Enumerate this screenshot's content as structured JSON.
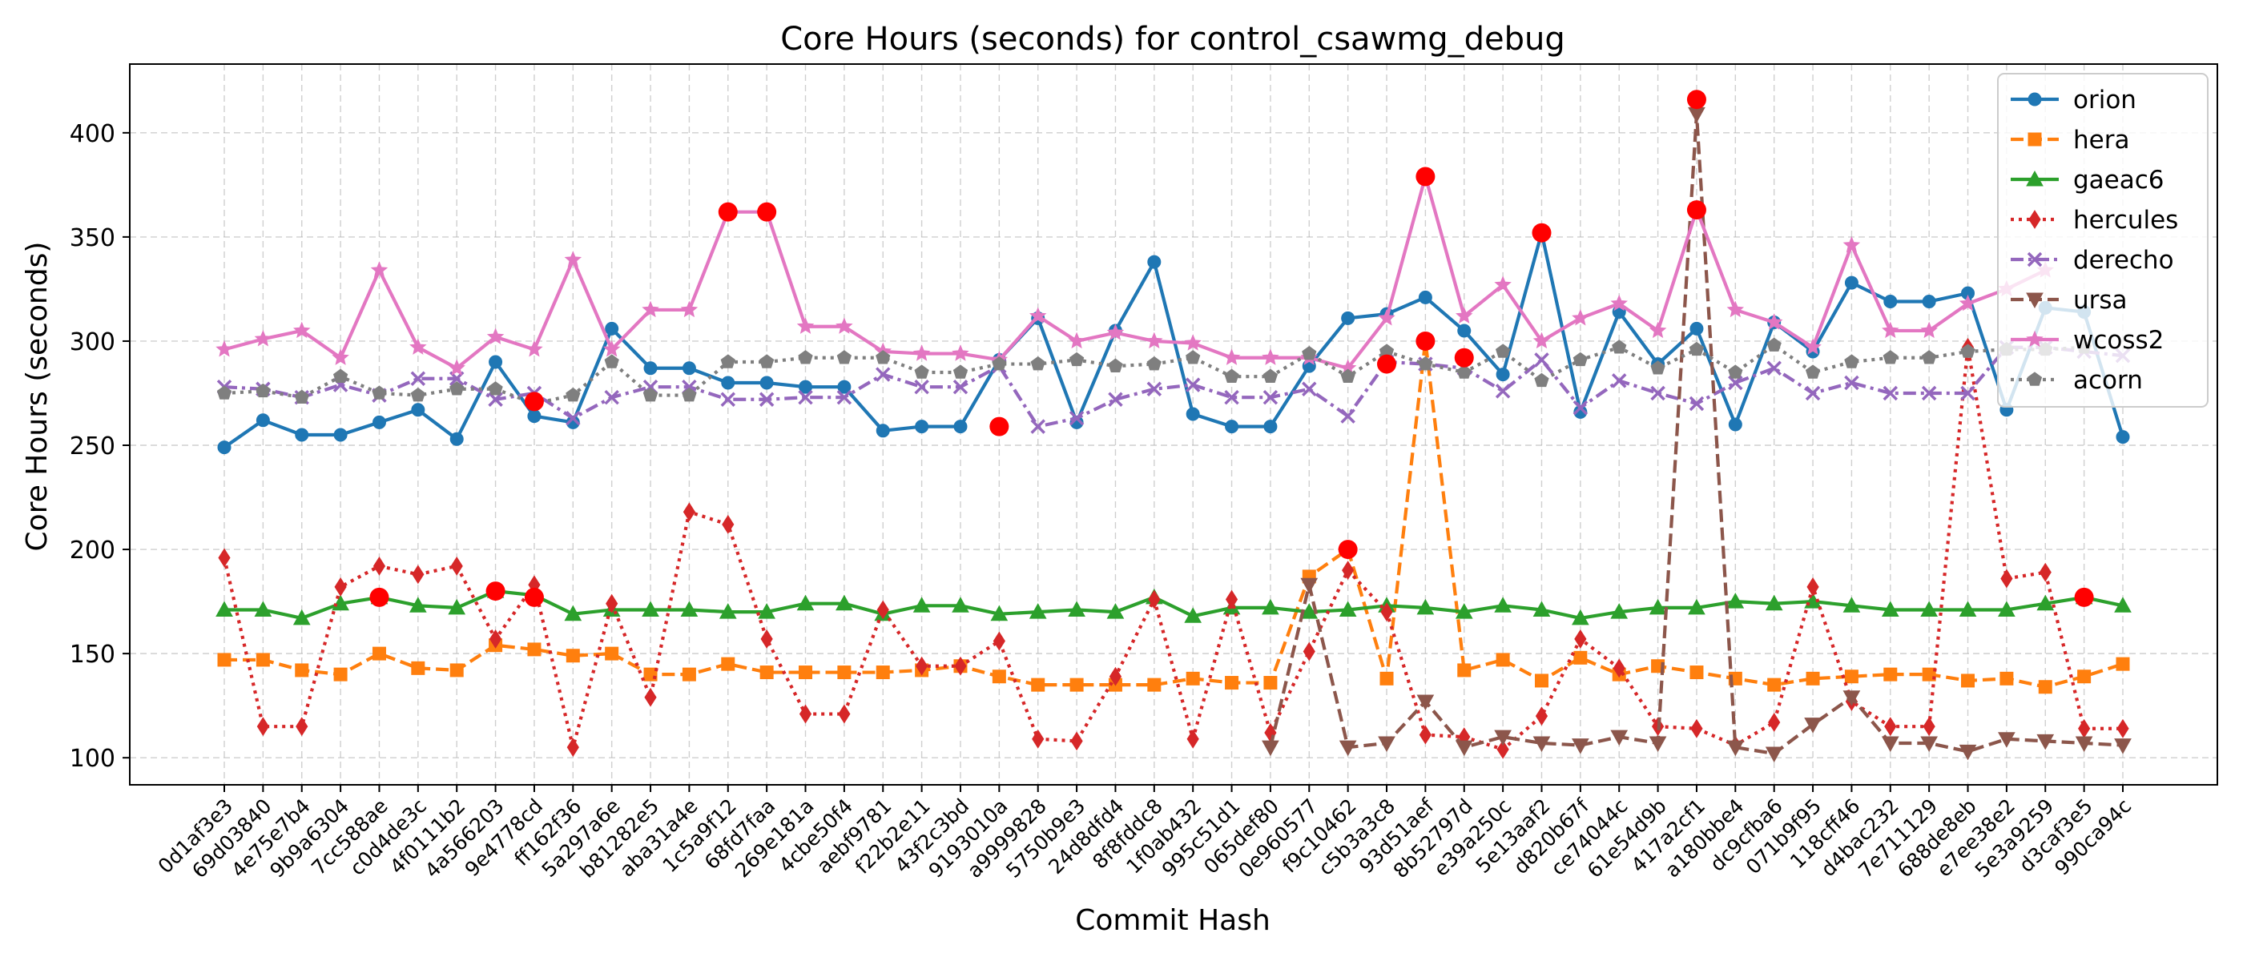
{
  "chart_data": {
    "type": "line",
    "title": "Core Hours (seconds) for control_csawmg_debug",
    "xlabel": "Commit Hash",
    "ylabel": "Core Hours (seconds)",
    "ylim": [
      87,
      433
    ],
    "yticks": [
      100,
      150,
      200,
      250,
      300,
      350,
      400
    ],
    "grid": true,
    "legend_position": "top-right",
    "categories": [
      "0d1af3e3",
      "69d03840",
      "4e75e7b4",
      "9b9a6304",
      "7cc588ae",
      "c0d4de3c",
      "4f0111b2",
      "4a566203",
      "9e4778cd",
      "ff162f36",
      "5a297a6e",
      "b81282e5",
      "aba31a4e",
      "1c5a9f12",
      "68fd7faa",
      "269e181a",
      "4cbe50f4",
      "aebf9781",
      "f22b2e11",
      "43f2c3bd",
      "9193010a",
      "a9999828",
      "5750b9e3",
      "24d8dfd4",
      "8f8fddc8",
      "1f0ab432",
      "995c51d1",
      "065def80",
      "0e960577",
      "f9c10462",
      "c5b3a3c8",
      "93d51aef",
      "8b52797d",
      "e39a250c",
      "5e13aaf2",
      "d820b67f",
      "ce74044c",
      "61e54d9b",
      "417a2cf1",
      "a180bbe4",
      "dc9cfba6",
      "071b9f95",
      "118cff46",
      "d4bac232",
      "7e711129",
      "688de8eb",
      "e7ee38e2",
      "5e3a9259",
      "d3caf3e5",
      "990ca94c"
    ],
    "series": [
      {
        "name": "orion",
        "color": "#1f77b4",
        "dash": "solid",
        "marker": "circle",
        "values": [
          249,
          262,
          255,
          255,
          261,
          267,
          253,
          290,
          264,
          261,
          306,
          287,
          287,
          280,
          280,
          278,
          278,
          257,
          259,
          259,
          291,
          311,
          261,
          305,
          338,
          265,
          259,
          259,
          288,
          311,
          313,
          321,
          305,
          284,
          352,
          266,
          314,
          289,
          306,
          260,
          309,
          295,
          328,
          319,
          319,
          323,
          267,
          316,
          314,
          254
        ]
      },
      {
        "name": "hera",
        "color": "#ff7f0e",
        "dash": "dashed",
        "marker": "square",
        "values": [
          147,
          147,
          142,
          140,
          150,
          143,
          142,
          154,
          152,
          149,
          150,
          140,
          140,
          145,
          141,
          141,
          141,
          141,
          142,
          144,
          139,
          135,
          135,
          135,
          135,
          138,
          136,
          136,
          187,
          200,
          138,
          300,
          142,
          147,
          137,
          148,
          140,
          144,
          141,
          138,
          135,
          138,
          139,
          140,
          140,
          137,
          138,
          134,
          139,
          145
        ]
      },
      {
        "name": "gaeac6",
        "color": "#2ca02c",
        "dash": "solid",
        "marker": "triangle-up",
        "values": [
          171,
          171,
          167,
          174,
          177,
          173,
          172,
          180,
          178,
          169,
          171,
          171,
          171,
          170,
          170,
          174,
          174,
          169,
          173,
          173,
          169,
          170,
          171,
          170,
          177,
          168,
          172,
          172,
          170,
          171,
          173,
          172,
          170,
          173,
          171,
          167,
          170,
          172,
          172,
          175,
          174,
          175,
          173,
          171,
          171,
          171,
          171,
          174,
          177,
          173
        ]
      },
      {
        "name": "hercules",
        "color": "#d62728",
        "dash": "dotted",
        "marker": "diamond",
        "values": [
          196,
          115,
          115,
          182,
          192,
          188,
          192,
          157,
          183,
          105,
          174,
          129,
          218,
          212,
          157,
          121,
          121,
          171,
          144,
          144,
          156,
          109,
          108,
          139,
          176,
          109,
          176,
          112,
          151,
          190,
          170,
          111,
          110,
          104,
          120,
          157,
          143,
          115,
          114,
          106,
          117,
          182,
          127,
          115,
          115,
          297,
          186,
          189,
          114,
          114
        ]
      },
      {
        "name": "derecho",
        "color": "#9467bd",
        "dash": "dashdot",
        "marker": "x",
        "values": [
          278,
          277,
          273,
          279,
          274,
          282,
          282,
          272,
          275,
          263,
          273,
          278,
          278,
          272,
          272,
          273,
          273,
          284,
          278,
          278,
          288,
          259,
          263,
          272,
          277,
          279,
          273,
          273,
          277,
          264,
          290,
          289,
          287,
          276,
          291,
          268,
          281,
          275,
          270,
          280,
          287,
          275,
          280,
          275,
          275,
          275,
          297,
          297,
          295,
          293
        ]
      },
      {
        "name": "ursa",
        "color": "#8c564b",
        "dash": "dashed",
        "marker": "triangle-down",
        "values": [
          null,
          null,
          null,
          null,
          null,
          null,
          null,
          null,
          null,
          null,
          null,
          null,
          null,
          null,
          null,
          null,
          null,
          null,
          null,
          null,
          null,
          null,
          null,
          null,
          null,
          null,
          null,
          105,
          183,
          105,
          107,
          127,
          105,
          110,
          107,
          106,
          110,
          107,
          409,
          105,
          102,
          116,
          129,
          107,
          107,
          103,
          109,
          108,
          107,
          106
        ]
      },
      {
        "name": "wcoss2",
        "color": "#e377c2",
        "dash": "solid",
        "marker": "star",
        "values": [
          296,
          301,
          305,
          292,
          334,
          297,
          287,
          302,
          296,
          339,
          296,
          315,
          315,
          362,
          362,
          307,
          307,
          295,
          294,
          294,
          291,
          312,
          300,
          304,
          300,
          299,
          292,
          292,
          292,
          287,
          311,
          379,
          312,
          327,
          300,
          311,
          318,
          305,
          363,
          315,
          309,
          297,
          346,
          305,
          305,
          318,
          325,
          334,
          null,
          null
        ]
      },
      {
        "name": "acorn",
        "color": "#7f7f7f",
        "dash": "dotted",
        "marker": "pentagon",
        "values": [
          275,
          276,
          273,
          283,
          275,
          274,
          277,
          277,
          270,
          274,
          290,
          274,
          274,
          290,
          290,
          292,
          292,
          292,
          285,
          285,
          289,
          289,
          291,
          288,
          289,
          292,
          283,
          283,
          294,
          283,
          295,
          289,
          285,
          295,
          281,
          291,
          297,
          287,
          296,
          285,
          298,
          285,
          290,
          292,
          292,
          295,
          296,
          296,
          297,
          null
        ]
      }
    ],
    "highlights": [
      {
        "x": "7cc588ae",
        "y": 177
      },
      {
        "x": "4a566203",
        "y": 180
      },
      {
        "x": "9e4778cd",
        "y": 271
      },
      {
        "x": "9e4778cd",
        "y": 177
      },
      {
        "x": "1c5a9f12",
        "y": 362
      },
      {
        "x": "68fd7faa",
        "y": 362
      },
      {
        "x": "9193010a",
        "y": 259
      },
      {
        "x": "f9c10462",
        "y": 200
      },
      {
        "x": "c5b3a3c8",
        "y": 289
      },
      {
        "x": "93d51aef",
        "y": 379
      },
      {
        "x": "93d51aef",
        "y": 300
      },
      {
        "x": "8b52797d",
        "y": 292
      },
      {
        "x": "5e13aaf2",
        "y": 352
      },
      {
        "x": "417a2cf1",
        "y": 416
      },
      {
        "x": "417a2cf1",
        "y": 363
      },
      {
        "x": "d3caf3e5",
        "y": 177
      }
    ],
    "highlight_color": "#ff0000"
  }
}
